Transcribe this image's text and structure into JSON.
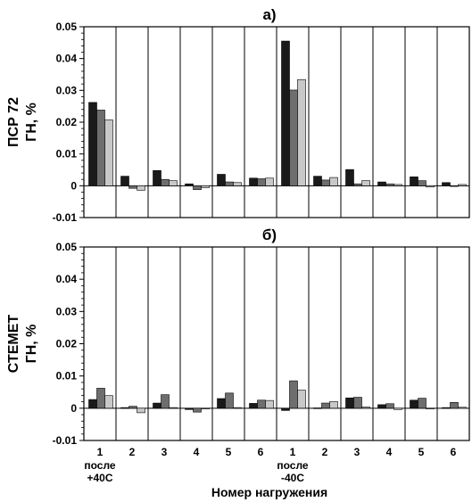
{
  "chart_data": [
    {
      "type": "bar",
      "title": "а)",
      "ylabel_lines": [
        "ПСР 72",
        "ГН, %"
      ],
      "ylim": [
        -0.01,
        0.05
      ],
      "yticks": [
        "-0.01",
        "0",
        "0.01",
        "0.02",
        "0.03",
        "0.04",
        "0.05"
      ],
      "categories": [
        "1",
        "2",
        "3",
        "4",
        "5",
        "6",
        "1",
        "2",
        "3",
        "4",
        "5",
        "6"
      ],
      "series": [
        {
          "color": "#1a1a1a",
          "values": [
            0.0262,
            0.003,
            0.0048,
            0.0006,
            0.0036,
            0.0024,
            0.0455,
            0.003,
            0.0051,
            0.0012,
            0.0028,
            0.001
          ]
        },
        {
          "color": "#6e6e6e",
          "values": [
            0.0238,
            -0.0008,
            0.002,
            -0.0012,
            0.0012,
            0.0022,
            0.0301,
            0.0018,
            0.0006,
            0.0006,
            0.0016,
            -0.0002
          ]
        },
        {
          "color": "#c8c8c8",
          "values": [
            0.0207,
            -0.0014,
            0.0016,
            -0.0006,
            0.001,
            0.0024,
            0.0334,
            0.0026,
            0.0016,
            0.0004,
            -0.0004,
            0.0004
          ]
        }
      ]
    },
    {
      "type": "bar",
      "title": "б)",
      "ylabel_lines": [
        "СТЕМЕТ",
        "ГН, %"
      ],
      "ylim": [
        -0.01,
        0.05
      ],
      "yticks": [
        "-0.01",
        "0",
        "0.01",
        "0.02",
        "0.03",
        "0.04",
        "0.05"
      ],
      "categories": [
        "1",
        "2",
        "3",
        "4",
        "5",
        "6",
        "1",
        "2",
        "3",
        "4",
        "5",
        "6"
      ],
      "series": [
        {
          "color": "#1a1a1a",
          "values": [
            0.0027,
            0.0002,
            0.0016,
            -0.0004,
            0.003,
            0.0015,
            -0.0007,
            0.0001,
            0.0032,
            0.0011,
            0.0025,
            0.0002
          ]
        },
        {
          "color": "#6e6e6e",
          "values": [
            0.0062,
            0.0006,
            0.0042,
            -0.0012,
            0.0047,
            0.0025,
            0.0085,
            0.0016,
            0.0034,
            0.0014,
            0.0031,
            0.0018
          ]
        },
        {
          "color": "#c8c8c8",
          "values": [
            0.0039,
            -0.0014,
            0.0002,
            -0.0002,
            0.0002,
            0.0024,
            0.0056,
            0.0021,
            0.0004,
            -0.0004,
            -0.0002,
            0.0003
          ]
        }
      ]
    }
  ],
  "group_labels": [
    [
      "после",
      "+40С"
    ],
    [
      "после",
      "-40С"
    ]
  ],
  "xlabel": "Номер нагружения"
}
